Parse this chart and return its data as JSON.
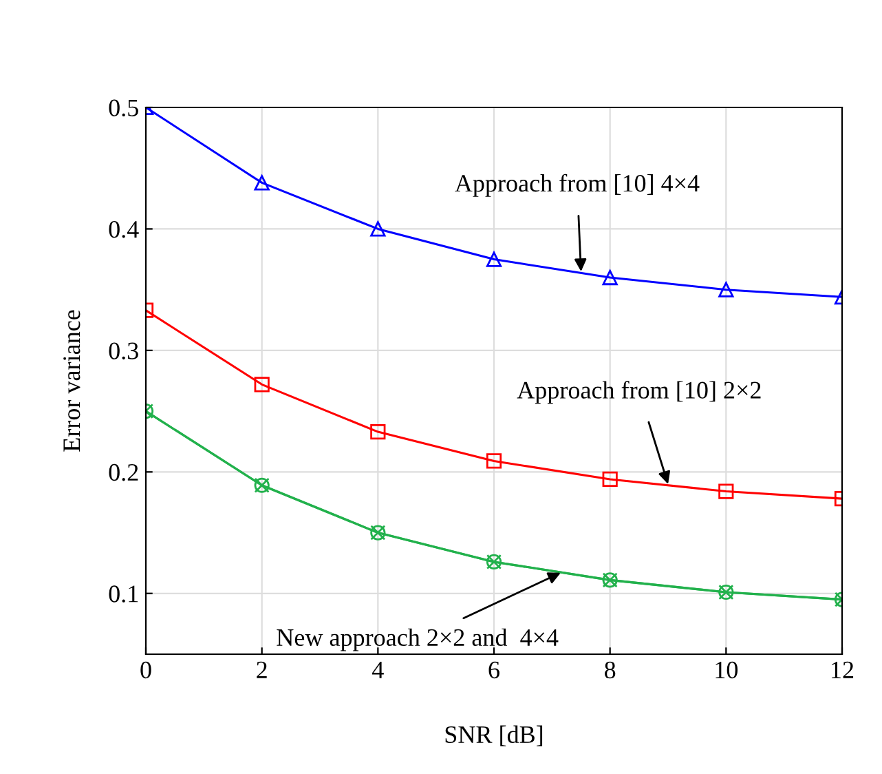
{
  "chart_data": {
    "type": "line",
    "xlabel": "SNR [dB]",
    "ylabel": "Error variance",
    "x": [
      0,
      2,
      4,
      6,
      8,
      10,
      12
    ],
    "series": [
      {
        "color": "#0000ff",
        "marker": "triangle",
        "values": [
          0.5,
          0.438,
          0.4,
          0.375,
          0.36,
          0.35,
          0.344
        ]
      },
      {
        "color": "#ff0000",
        "marker": "square",
        "values": [
          0.333,
          0.272,
          0.233,
          0.209,
          0.194,
          0.184,
          0.178
        ]
      },
      {
        "color": "#22b14c",
        "marker": "circle",
        "values": [
          0.25,
          0.189,
          0.15,
          0.126,
          0.111,
          0.101,
          0.095
        ]
      },
      {
        "color": "#22b14c",
        "marker": "cross",
        "values": [
          0.25,
          0.189,
          0.15,
          0.126,
          0.111,
          0.101,
          0.095
        ]
      }
    ],
    "xlim": [
      0,
      12
    ],
    "ylim": [
      0.05,
      0.5
    ],
    "xticks": [
      0,
      2,
      4,
      6,
      8,
      10,
      12
    ],
    "yticks": [
      0.1,
      0.2,
      0.3,
      0.4,
      0.5
    ],
    "grid": true,
    "line_style": "solid",
    "annotations": [
      {
        "text": "Approach from [10] 4×4",
        "x": 7.5,
        "y": 0.365
      },
      {
        "text": "Approach from [10] 2×2",
        "x": 9,
        "y": 0.19
      },
      {
        "text": "New approach 2×2 and  4×4",
        "x": 7.15,
        "y": 0.117
      }
    ]
  }
}
